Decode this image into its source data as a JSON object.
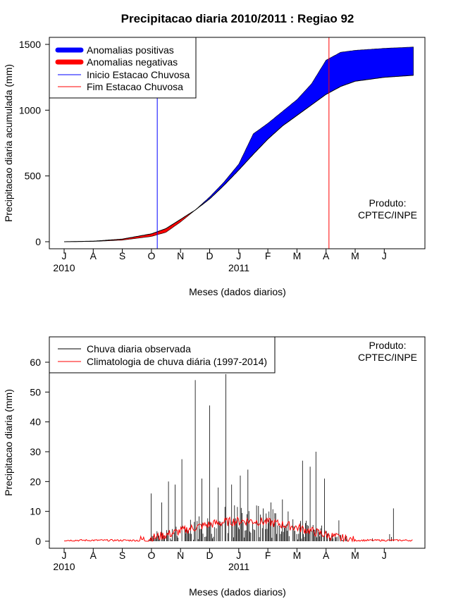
{
  "chart_data": [
    {
      "type": "area",
      "title": "Precipitacao diaria 2010/2011 : Regiao 92",
      "xlabel": "Meses (dados diarios)",
      "ylabel": "Precipitacao diaria acumulada (mm)",
      "ylim": [
        0,
        1500
      ],
      "yticks": [
        0,
        500,
        1000,
        1500
      ],
      "month_ticks": [
        "J",
        "A",
        "S",
        "O",
        "N",
        "D",
        "J",
        "F",
        "M",
        "A",
        "M",
        "J"
      ],
      "year_labels": [
        "2010",
        "2011"
      ],
      "legend": {
        "position": "top-left",
        "entries": [
          "Anomalias positivas",
          "Anomalias negativas",
          "Inicio Estacao Chuvosa",
          "Fim Estacao Chuvosa"
        ]
      },
      "annotation": [
        "Produto:",
        "CPTEC/INPE"
      ],
      "colors": {
        "positive": "#0000ff",
        "negative": "#ff0000",
        "start": "#0000ff",
        "end": "#ff0000"
      },
      "season_start_month": 3.2,
      "season_end_month": 9.1,
      "x_month_index": [
        0,
        1,
        2,
        3,
        3.5,
        4,
        4.5,
        5,
        5.5,
        6,
        6.5,
        7,
        7.5,
        8,
        8.5,
        9,
        9.5,
        10,
        11,
        12
      ],
      "observed_cumulative": [
        0,
        2,
        12,
        40,
        72,
        150,
        240,
        340,
        455,
        590,
        820,
        900,
        990,
        1080,
        1200,
        1380,
        1440,
        1455,
        1470,
        1480
      ],
      "climatology_cumulative": [
        0,
        4,
        20,
        60,
        100,
        170,
        240,
        325,
        430,
        545,
        665,
        780,
        880,
        960,
        1040,
        1120,
        1180,
        1220,
        1250,
        1265
      ]
    },
    {
      "type": "bar",
      "xlabel": "Meses (dados diarios)",
      "ylabel": "Precipitacao diaria (mm)",
      "ylim": [
        0,
        65
      ],
      "yticks": [
        0,
        10,
        20,
        30,
        40,
        50,
        60
      ],
      "month_ticks": [
        "J",
        "A",
        "S",
        "O",
        "N",
        "D",
        "J",
        "F",
        "M",
        "A",
        "M",
        "J"
      ],
      "year_labels": [
        "2010",
        "2011"
      ],
      "legend": {
        "position": "top-left",
        "entries": [
          "Chuva diaria observada",
          "Climatologia de chuva diária (1997-2014)"
        ]
      },
      "annotation": [
        "Produto:",
        "CPTEC/INPE"
      ],
      "colors": {
        "observed": "#000000",
        "climatology": "#ff0000"
      },
      "peak_days": [
        {
          "month": 3.0,
          "value": 16
        },
        {
          "month": 3.35,
          "value": 13
        },
        {
          "month": 3.6,
          "value": 20
        },
        {
          "month": 3.8,
          "value": 19
        },
        {
          "month": 4.05,
          "value": 27.5
        },
        {
          "month": 4.5,
          "value": 54
        },
        {
          "month": 4.75,
          "value": 21
        },
        {
          "month": 5.0,
          "value": 45.5
        },
        {
          "month": 5.3,
          "value": 18
        },
        {
          "month": 5.55,
          "value": 56
        },
        {
          "month": 5.75,
          "value": 19
        },
        {
          "month": 6.05,
          "value": 22
        },
        {
          "month": 6.3,
          "value": 24
        },
        {
          "month": 6.6,
          "value": 12
        },
        {
          "month": 7.1,
          "value": 13
        },
        {
          "month": 7.5,
          "value": 14
        },
        {
          "month": 8.2,
          "value": 27
        },
        {
          "month": 8.45,
          "value": 25
        },
        {
          "month": 8.65,
          "value": 30
        },
        {
          "month": 8.95,
          "value": 21
        },
        {
          "month": 9.45,
          "value": 7
        },
        {
          "month": 11.3,
          "value": 11
        }
      ]
    }
  ]
}
